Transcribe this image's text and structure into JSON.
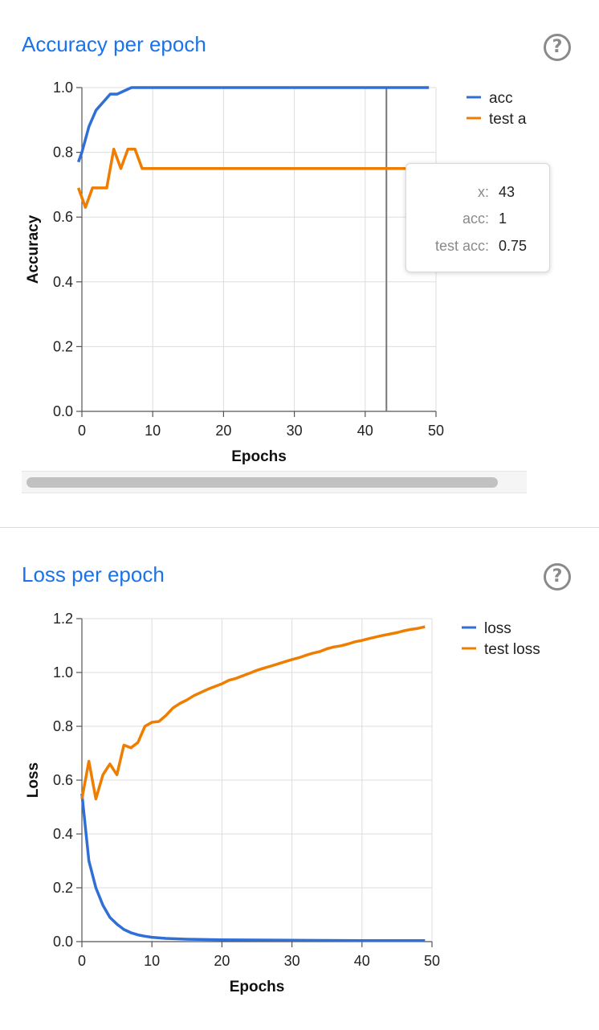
{
  "sections": [
    {
      "title": "Accuracy per epoch",
      "help_icon": "question-circle-icon",
      "chart_data": {
        "type": "line",
        "xlabel": "Epochs",
        "ylabel": "Accuracy",
        "xlim": [
          0,
          50
        ],
        "ylim": [
          0,
          1.0
        ],
        "xticks": [
          "0",
          "10",
          "20",
          "30",
          "40",
          "50"
        ],
        "yticks": [
          "0.0",
          "0.2",
          "0.4",
          "0.6",
          "0.8",
          "1.0"
        ],
        "grid": true,
        "legend_position": "top-right",
        "series": [
          {
            "name": "acc",
            "color": "#2f6fd6",
            "points": [
              [
                -0.5,
                0.77
              ],
              [
                0,
                0.8
              ],
              [
                1,
                0.88
              ],
              [
                2,
                0.93
              ],
              [
                3,
                0.955
              ],
              [
                4,
                0.98
              ],
              [
                5,
                0.98
              ],
              [
                6,
                0.99
              ],
              [
                7,
                1.0
              ],
              [
                8,
                1.0
              ],
              [
                10,
                1.0
              ],
              [
                20,
                1.0
              ],
              [
                30,
                1.0
              ],
              [
                40,
                1.0
              ],
              [
                49,
                1.0
              ]
            ]
          },
          {
            "name": "test acc",
            "color": "#ef7d00",
            "points": [
              [
                -0.5,
                0.69
              ],
              [
                0.5,
                0.63
              ],
              [
                1.5,
                0.69
              ],
              [
                2.5,
                0.69
              ],
              [
                3.5,
                0.69
              ],
              [
                4.5,
                0.81
              ],
              [
                5.5,
                0.75
              ],
              [
                6.5,
                0.81
              ],
              [
                7.5,
                0.81
              ],
              [
                8.5,
                0.75
              ],
              [
                10,
                0.75
              ],
              [
                20,
                0.75
              ],
              [
                30,
                0.75
              ],
              [
                40,
                0.75
              ],
              [
                49,
                0.75
              ]
            ]
          }
        ],
        "legend_labels": [
          "acc",
          "test a"
        ],
        "hover_x": 43
      },
      "tooltip": {
        "rows": [
          {
            "key": "x:",
            "value": "43"
          },
          {
            "key": "acc:",
            "value": "1"
          },
          {
            "key": "test acc:",
            "value": "0.75"
          }
        ]
      }
    },
    {
      "title": "Loss per epoch",
      "help_icon": "question-circle-icon",
      "chart_data": {
        "type": "line",
        "xlabel": "Epochs",
        "ylabel": "Loss",
        "xlim": [
          0,
          50
        ],
        "ylim": [
          0,
          1.2
        ],
        "xticks": [
          "0",
          "10",
          "20",
          "30",
          "40",
          "50"
        ],
        "yticks": [
          "0.0",
          "0.2",
          "0.4",
          "0.6",
          "0.8",
          "1.0",
          "1.2"
        ],
        "grid": true,
        "legend_position": "top-right",
        "series": [
          {
            "name": "loss",
            "color": "#2f6fd6",
            "points": [
              [
                0,
                0.55
              ],
              [
                1,
                0.3
              ],
              [
                2,
                0.2
              ],
              [
                3,
                0.135
              ],
              [
                4,
                0.09
              ],
              [
                5,
                0.065
              ],
              [
                6,
                0.045
              ],
              [
                7,
                0.033
              ],
              [
                8,
                0.025
              ],
              [
                9,
                0.02
              ],
              [
                10,
                0.016
              ],
              [
                12,
                0.012
              ],
              [
                15,
                0.009
              ],
              [
                20,
                0.007
              ],
              [
                30,
                0.005
              ],
              [
                40,
                0.004
              ],
              [
                49,
                0.004
              ]
            ]
          },
          {
            "name": "test loss",
            "color": "#ef7d00",
            "points": [
              [
                0,
                0.53
              ],
              [
                1,
                0.67
              ],
              [
                2,
                0.53
              ],
              [
                3,
                0.62
              ],
              [
                4,
                0.66
              ],
              [
                5,
                0.62
              ],
              [
                6,
                0.73
              ],
              [
                7,
                0.72
              ],
              [
                8,
                0.74
              ],
              [
                9,
                0.8
              ],
              [
                10,
                0.815
              ],
              [
                11,
                0.818
              ],
              [
                12,
                0.84
              ],
              [
                13,
                0.868
              ],
              [
                14,
                0.885
              ],
              [
                15,
                0.898
              ],
              [
                16,
                0.914
              ],
              [
                17,
                0.926
              ],
              [
                18,
                0.938
              ],
              [
                19,
                0.948
              ],
              [
                20,
                0.958
              ],
              [
                21,
                0.971
              ],
              [
                22,
                0.978
              ],
              [
                23,
                0.988
              ],
              [
                24,
                0.998
              ],
              [
                25,
                1.008
              ],
              [
                26,
                1.016
              ],
              [
                27,
                1.024
              ],
              [
                28,
                1.032
              ],
              [
                29,
                1.04
              ],
              [
                30,
                1.048
              ],
              [
                31,
                1.055
              ],
              [
                32,
                1.064
              ],
              [
                33,
                1.072
              ],
              [
                34,
                1.078
              ],
              [
                35,
                1.088
              ],
              [
                36,
                1.095
              ],
              [
                37,
                1.099
              ],
              [
                38,
                1.106
              ],
              [
                39,
                1.114
              ],
              [
                40,
                1.119
              ],
              [
                41,
                1.126
              ],
              [
                42,
                1.132
              ],
              [
                43,
                1.138
              ],
              [
                44,
                1.143
              ],
              [
                45,
                1.148
              ],
              [
                46,
                1.155
              ],
              [
                47,
                1.16
              ],
              [
                48,
                1.164
              ],
              [
                49,
                1.17
              ]
            ]
          }
        ],
        "legend_labels": [
          "loss",
          "test loss"
        ]
      }
    }
  ]
}
